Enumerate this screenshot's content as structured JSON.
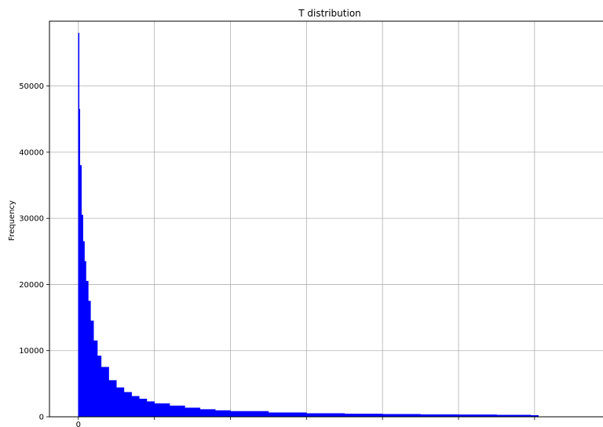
{
  "chart_data": {
    "type": "bar",
    "title": "T distribution",
    "xlabel": "",
    "ylabel": "Frequency",
    "ylim": [
      0,
      59800
    ],
    "yticks": [
      0,
      10000,
      20000,
      30000,
      40000,
      50000
    ],
    "xticks": [
      0,
      1,
      2,
      3,
      4,
      5,
      6
    ],
    "xtick_labels": [
      "0",
      "",
      "",
      "",
      "",
      "",
      ""
    ],
    "xlim": [
      -0.38,
      6.9
    ],
    "grid": true,
    "bar_color": "#0000ff",
    "series": [
      {
        "x": [
          0.0,
          0.01,
          0.02,
          0.04,
          0.06,
          0.08,
          0.1,
          0.13,
          0.16,
          0.2,
          0.25,
          0.3,
          0.4,
          0.5,
          0.6,
          0.7,
          0.8,
          0.9,
          1.0,
          1.2,
          1.4,
          1.6,
          1.8,
          2.0,
          2.5,
          3.0,
          3.5,
          4.0,
          4.5,
          5.0,
          5.5,
          5.95,
          6.05
        ],
        "values": [
          58000,
          46500,
          38000,
          30500,
          26500,
          23500,
          20500,
          17500,
          14500,
          11500,
          9200,
          7500,
          5500,
          4400,
          3700,
          3100,
          2700,
          2300,
          2000,
          1650,
          1350,
          1100,
          950,
          820,
          620,
          500,
          430,
          380,
          340,
          300,
          260,
          200,
          0
        ]
      }
    ]
  }
}
